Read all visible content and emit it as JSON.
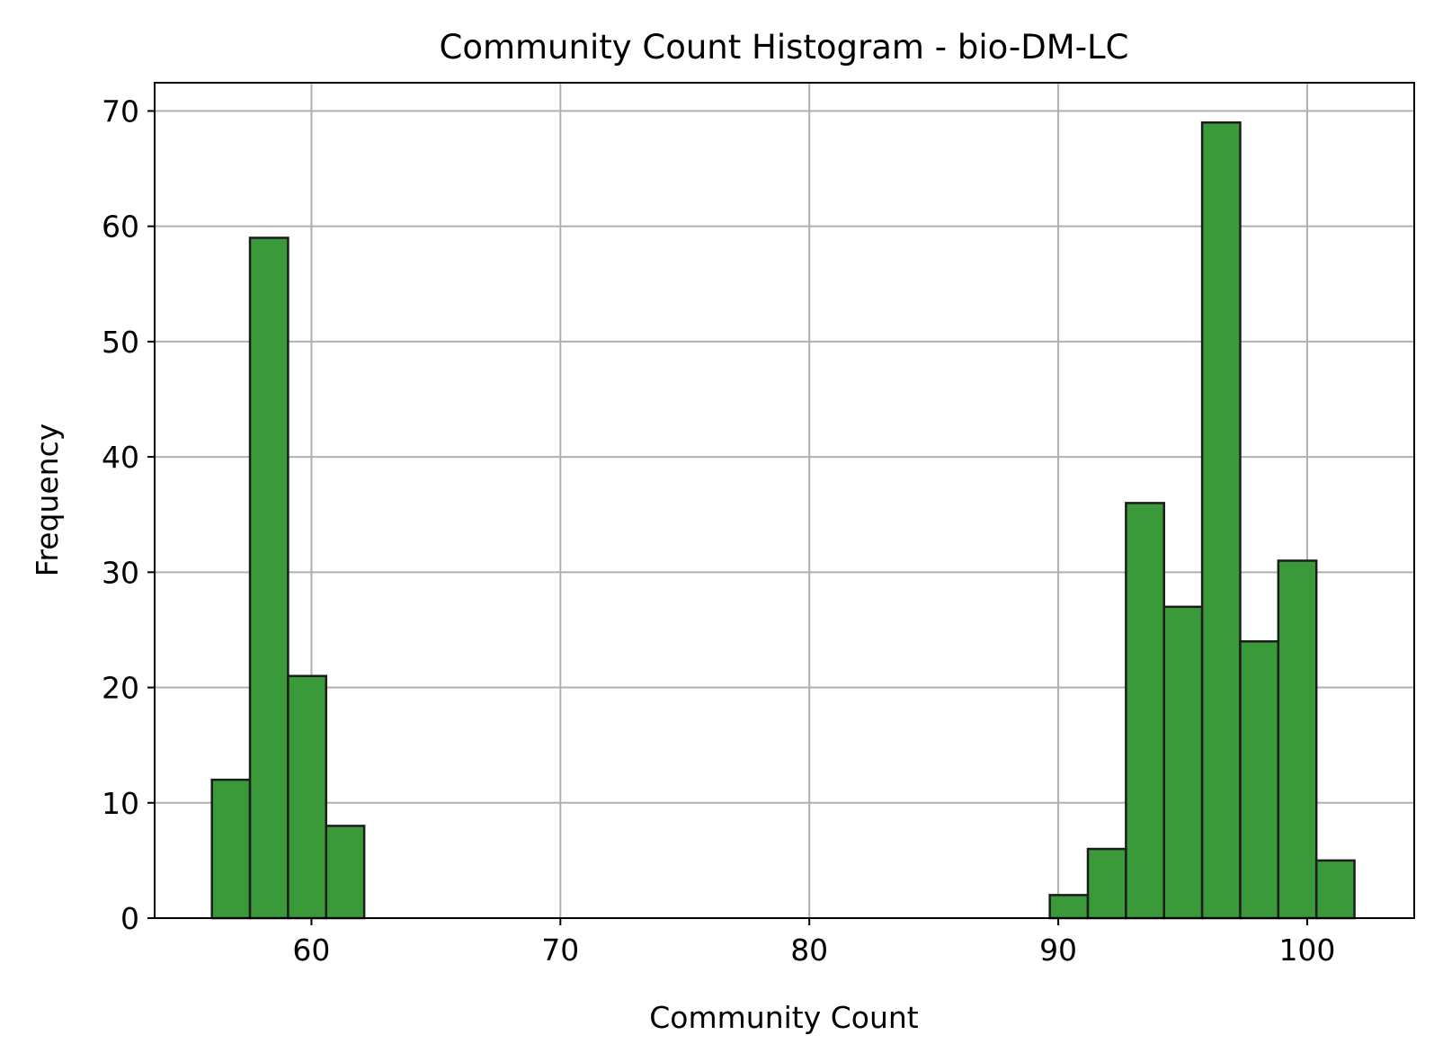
{
  "chart_data": {
    "type": "histogram",
    "title": "Community Count Histogram - bio-DM-LC",
    "xlabel": "Community Count",
    "ylabel": "Frequency",
    "xlim": [
      53.7,
      104.3
    ],
    "ylim": [
      0,
      72.45
    ],
    "xticks": [
      60,
      70,
      80,
      90,
      100
    ],
    "yticks": [
      0,
      10,
      20,
      30,
      40,
      50,
      60,
      70
    ],
    "grid": true,
    "bar_color": "#3a9a3a",
    "edge_color": "#1c1c1c",
    "grid_color": "#b0b0b0",
    "bins": [
      {
        "start": 56.0,
        "end": 57.53,
        "count": 12
      },
      {
        "start": 57.53,
        "end": 59.06,
        "count": 59
      },
      {
        "start": 59.06,
        "end": 60.59,
        "count": 21
      },
      {
        "start": 60.59,
        "end": 62.12,
        "count": 8
      },
      {
        "start": 62.12,
        "end": 63.65,
        "count": 0
      },
      {
        "start": 63.65,
        "end": 65.18,
        "count": 0
      },
      {
        "start": 65.18,
        "end": 66.71,
        "count": 0
      },
      {
        "start": 66.71,
        "end": 68.24,
        "count": 0
      },
      {
        "start": 68.24,
        "end": 69.77,
        "count": 0
      },
      {
        "start": 69.77,
        "end": 71.3,
        "count": 0
      },
      {
        "start": 71.3,
        "end": 72.83,
        "count": 0
      },
      {
        "start": 72.83,
        "end": 74.36,
        "count": 0
      },
      {
        "start": 74.36,
        "end": 75.89,
        "count": 0
      },
      {
        "start": 75.89,
        "end": 77.42,
        "count": 0
      },
      {
        "start": 77.42,
        "end": 78.95,
        "count": 0
      },
      {
        "start": 78.95,
        "end": 80.48,
        "count": 0
      },
      {
        "start": 80.48,
        "end": 82.01,
        "count": 0
      },
      {
        "start": 82.01,
        "end": 83.54,
        "count": 0
      },
      {
        "start": 83.54,
        "end": 85.07,
        "count": 0
      },
      {
        "start": 85.07,
        "end": 86.6,
        "count": 0
      },
      {
        "start": 86.6,
        "end": 88.13,
        "count": 0
      },
      {
        "start": 88.13,
        "end": 89.66,
        "count": 0
      },
      {
        "start": 89.66,
        "end": 91.19,
        "count": 2
      },
      {
        "start": 91.19,
        "end": 92.72,
        "count": 6
      },
      {
        "start": 92.72,
        "end": 94.25,
        "count": 36
      },
      {
        "start": 94.25,
        "end": 95.78,
        "count": 27
      },
      {
        "start": 95.78,
        "end": 97.31,
        "count": 69
      },
      {
        "start": 97.31,
        "end": 98.84,
        "count": 24
      },
      {
        "start": 98.84,
        "end": 100.37,
        "count": 31
      },
      {
        "start": 100.37,
        "end": 101.9,
        "count": 5
      }
    ]
  }
}
